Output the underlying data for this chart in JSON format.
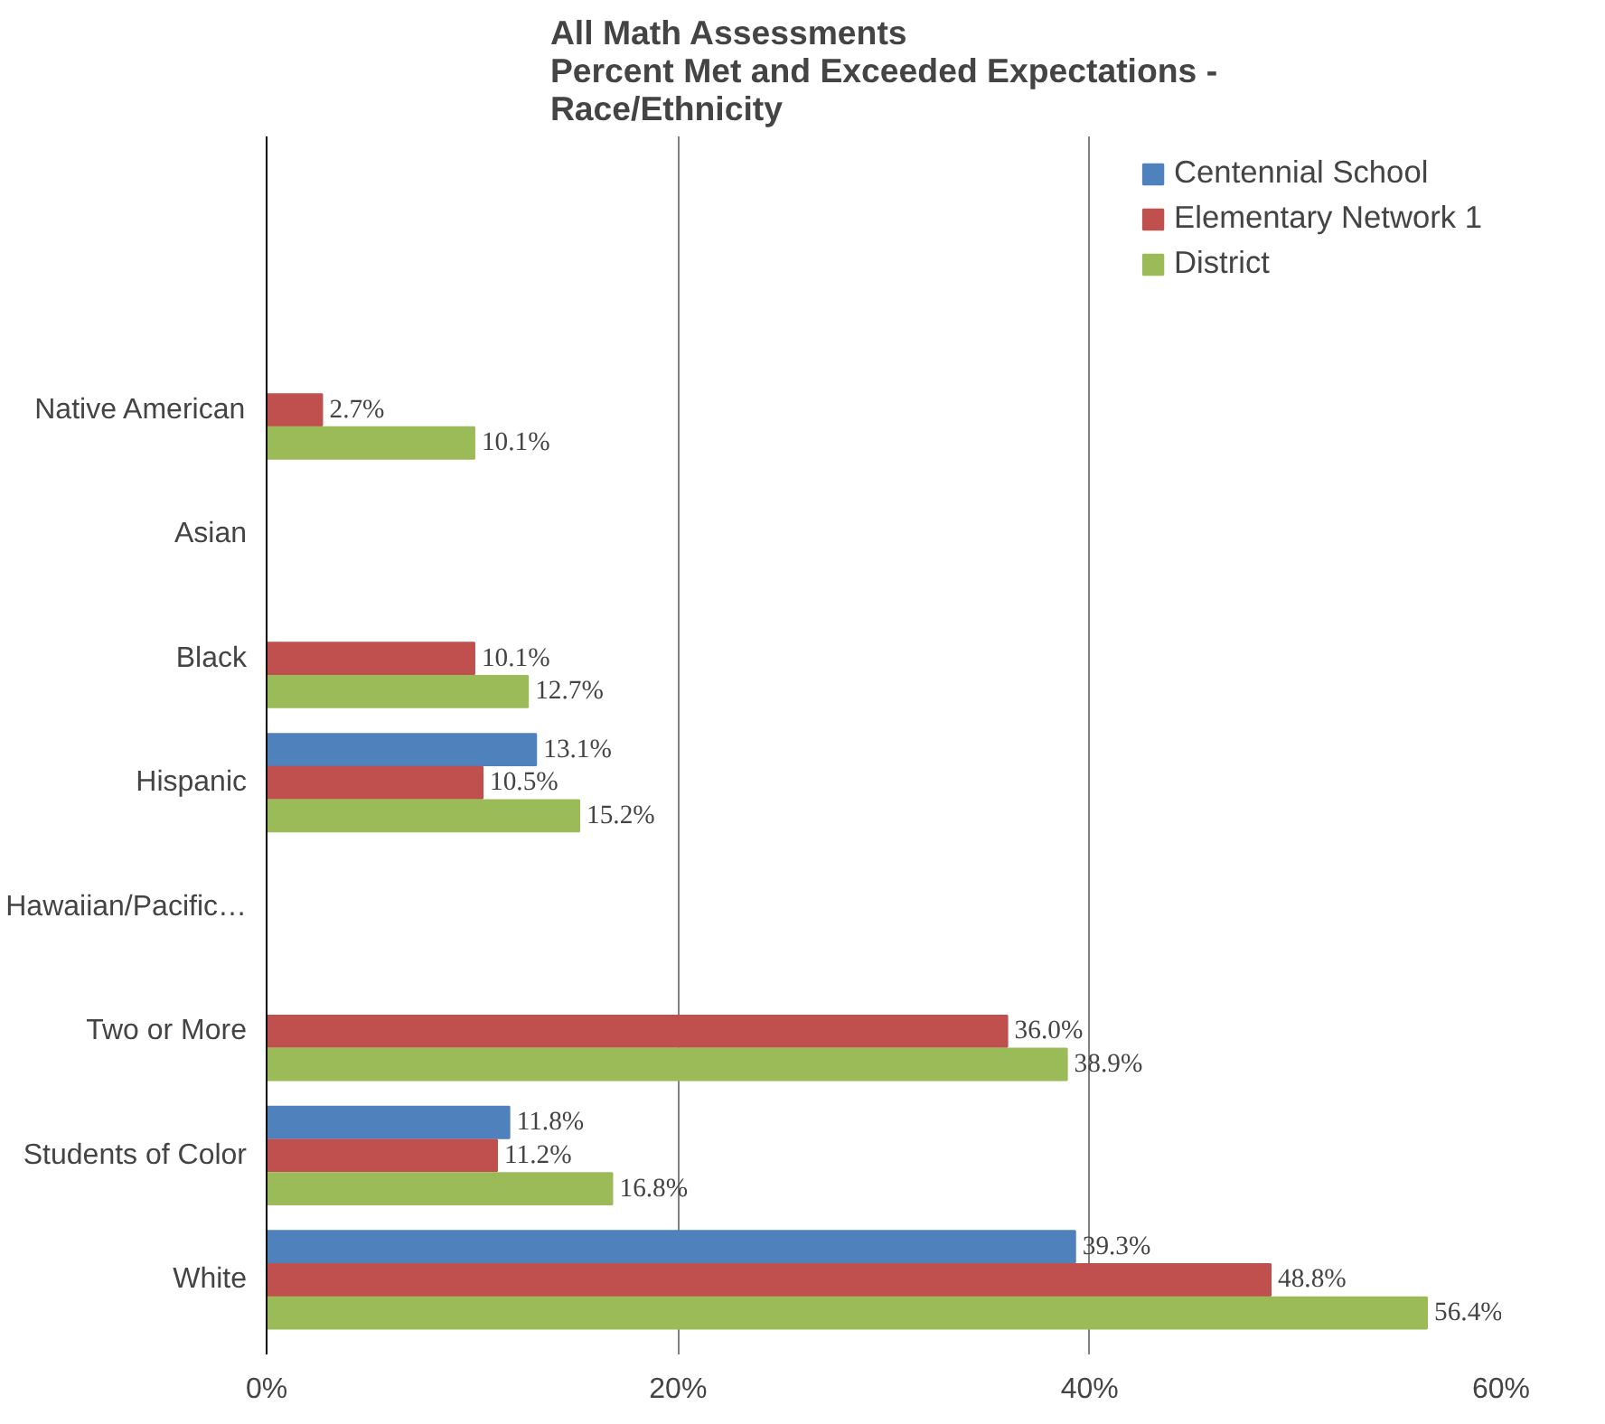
{
  "chart_data": {
    "type": "bar",
    "orientation": "horizontal",
    "title": "All Math Assessments\nPercent Met and Exceeded Expectations -\nRace/Ethnicity",
    "categories": [
      "Native American",
      "Asian",
      "Black",
      "Hispanic",
      "Hawaiian/Pacific…",
      "Two or More",
      "Students of Color",
      "White"
    ],
    "series": [
      {
        "name": "Centennial School",
        "color": "#4f81bd",
        "values": [
          null,
          null,
          null,
          13.1,
          null,
          null,
          11.8,
          39.3
        ],
        "value_labels": [
          null,
          null,
          null,
          "13.1%",
          null,
          null,
          "11.8%",
          "39.3%"
        ]
      },
      {
        "name": "Elementary Network 1",
        "color": "#c0504d",
        "values": [
          2.7,
          null,
          10.1,
          10.5,
          null,
          36.0,
          11.2,
          48.8
        ],
        "value_labels": [
          "2.7%",
          null,
          "10.1%",
          "10.5%",
          null,
          "36.0%",
          "11.2%",
          "48.8%"
        ]
      },
      {
        "name": "District",
        "color": "#9bbb59",
        "values": [
          10.1,
          null,
          12.7,
          15.2,
          null,
          38.9,
          16.8,
          56.4
        ],
        "value_labels": [
          "10.1%",
          null,
          "12.7%",
          "15.2%",
          null,
          "38.9%",
          "16.8%",
          "56.4%"
        ]
      }
    ],
    "xlim": [
      0,
      60
    ],
    "xticks": [
      {
        "value": 0,
        "label": "0%"
      },
      {
        "value": 20,
        "label": "20%"
      },
      {
        "value": 40,
        "label": "40%"
      },
      {
        "value": 60,
        "label": "60%"
      }
    ],
    "grid": "x",
    "legend": "top right"
  }
}
